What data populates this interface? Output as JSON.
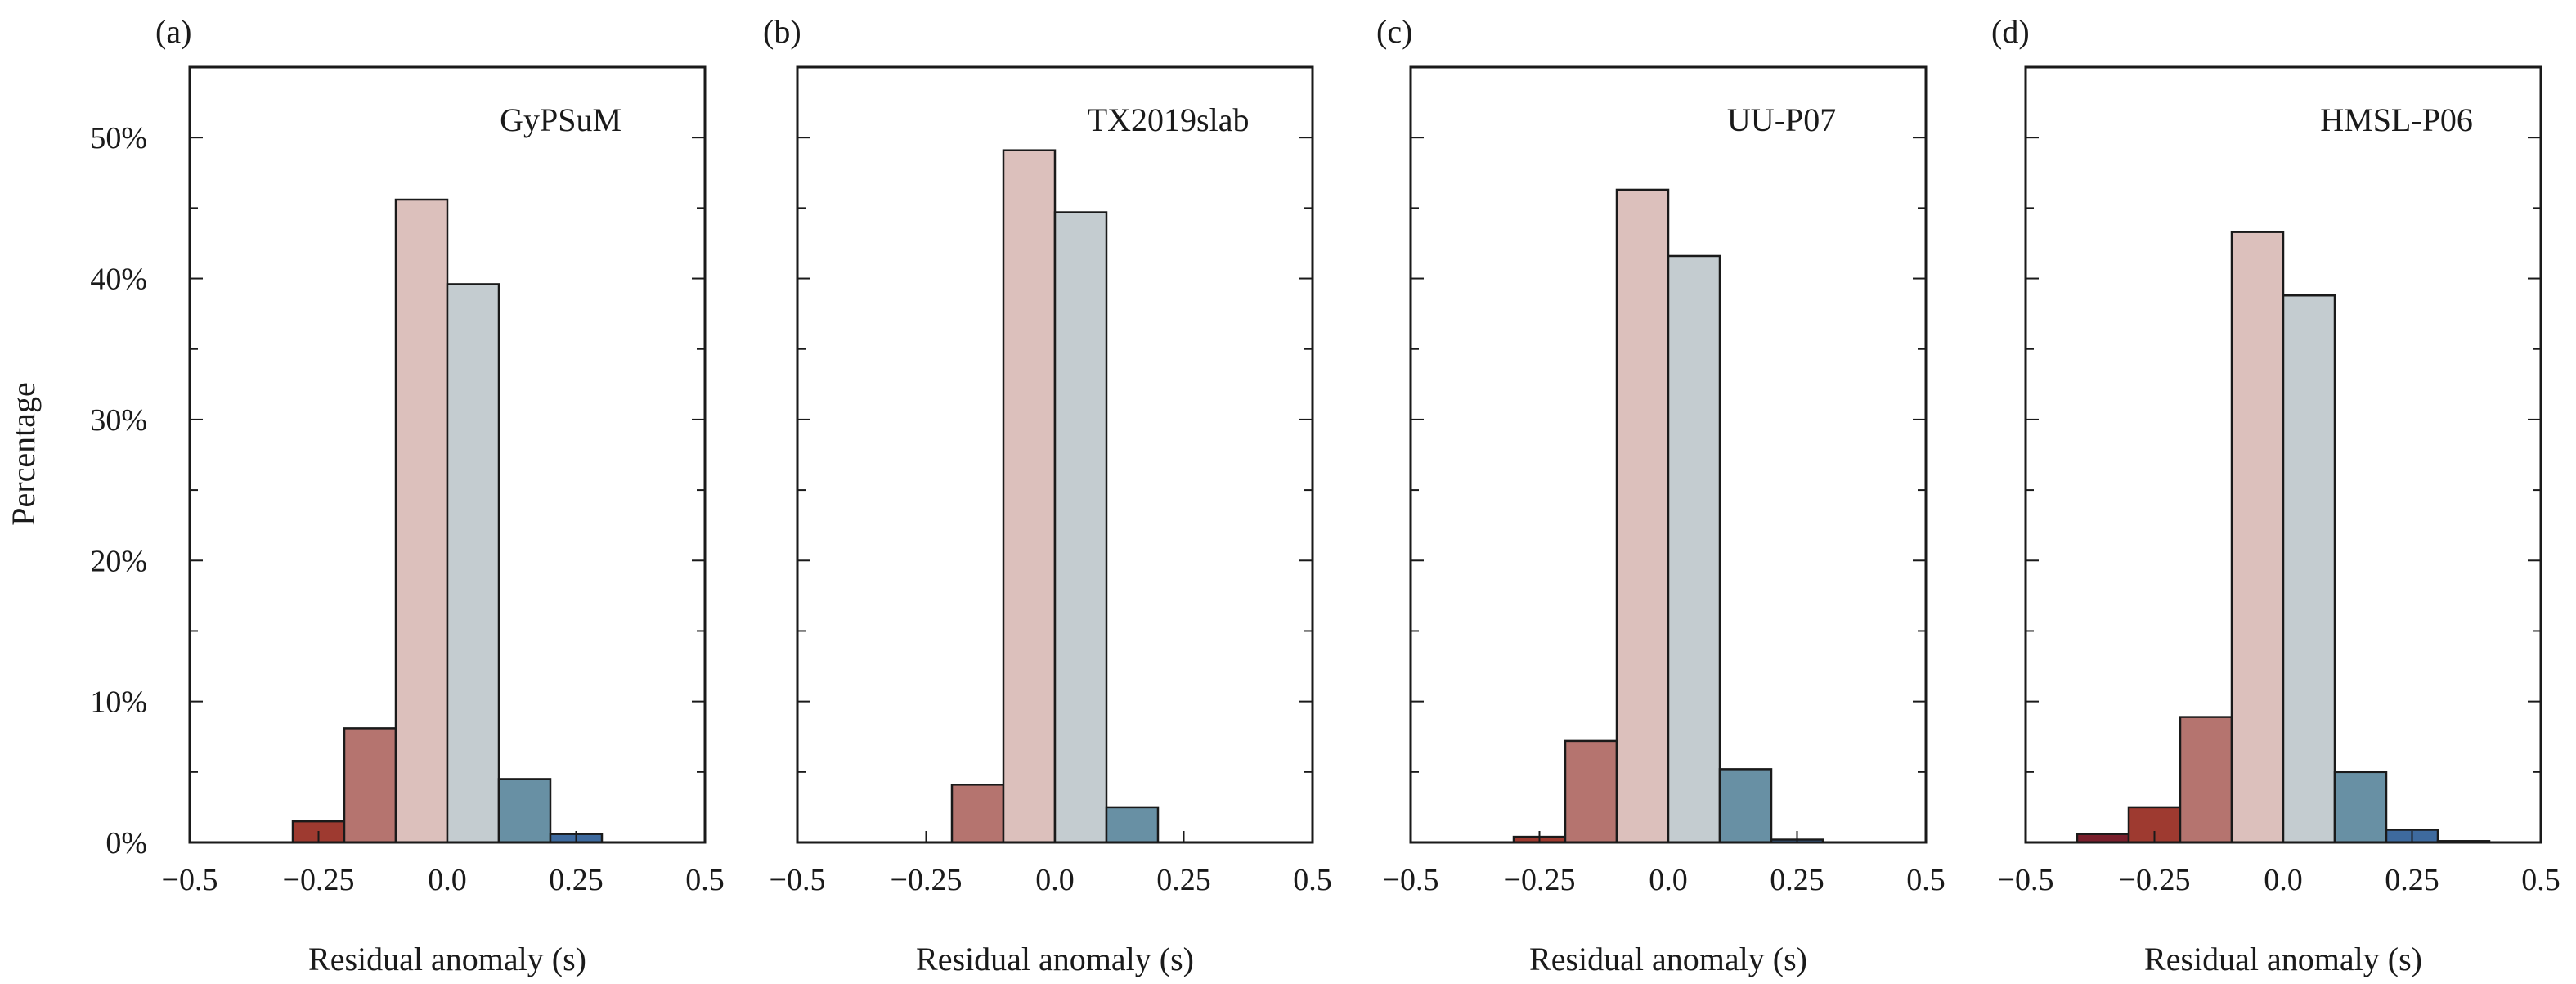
{
  "chart_data": {
    "type": "bar",
    "ylabel": "Percentage",
    "xlabel": "Residual anomaly (s)",
    "xlim": [
      -0.5,
      0.5
    ],
    "ylim": [
      0,
      55
    ],
    "bin_width": 0.1,
    "x_ticks": [
      -0.5,
      -0.25,
      0.0,
      0.25,
      0.5
    ],
    "x_tick_labels": [
      "−0.5",
      "−0.25",
      "0.0",
      "0.25",
      "0.5"
    ],
    "y_ticks": [
      0,
      10,
      20,
      30,
      40,
      50
    ],
    "y_tick_labels": [
      "0%",
      "10%",
      "20%",
      "30%",
      "40%",
      "50%"
    ],
    "bin_colors": [
      "#7a1f2c",
      "#9e3a30",
      "#b5746f",
      "#dcc0bc",
      "#c4ccd0",
      "#6890a4",
      "#3e6a9e",
      "#2f5a8e"
    ],
    "panels": [
      {
        "label": "(a)",
        "model": "GyPSuM",
        "bins": [
          {
            "center": -0.35,
            "value": 0.0
          },
          {
            "center": -0.25,
            "value": 1.5
          },
          {
            "center": -0.15,
            "value": 8.1
          },
          {
            "center": -0.05,
            "value": 45.6
          },
          {
            "center": 0.05,
            "value": 39.6
          },
          {
            "center": 0.15,
            "value": 4.5
          },
          {
            "center": 0.25,
            "value": 0.6
          }
        ]
      },
      {
        "label": "(b)",
        "model": "TX2019slab",
        "bins": [
          {
            "center": -0.15,
            "value": 4.1
          },
          {
            "center": -0.05,
            "value": 49.1
          },
          {
            "center": 0.05,
            "value": 44.7
          },
          {
            "center": 0.15,
            "value": 2.5
          }
        ]
      },
      {
        "label": "(c)",
        "model": "UU-P07",
        "bins": [
          {
            "center": -0.25,
            "value": 0.4
          },
          {
            "center": -0.15,
            "value": 7.2
          },
          {
            "center": -0.05,
            "value": 46.3
          },
          {
            "center": 0.05,
            "value": 41.6
          },
          {
            "center": 0.15,
            "value": 5.2
          },
          {
            "center": 0.25,
            "value": 0.2
          }
        ]
      },
      {
        "label": "(d)",
        "model": "HMSL-P06",
        "bins": [
          {
            "center": -0.35,
            "value": 0.6
          },
          {
            "center": -0.25,
            "value": 2.5
          },
          {
            "center": -0.15,
            "value": 8.9
          },
          {
            "center": -0.05,
            "value": 43.3
          },
          {
            "center": 0.05,
            "value": 38.8
          },
          {
            "center": 0.15,
            "value": 5.0
          },
          {
            "center": 0.25,
            "value": 0.9
          },
          {
            "center": 0.35,
            "value": 0.1
          }
        ]
      }
    ]
  }
}
